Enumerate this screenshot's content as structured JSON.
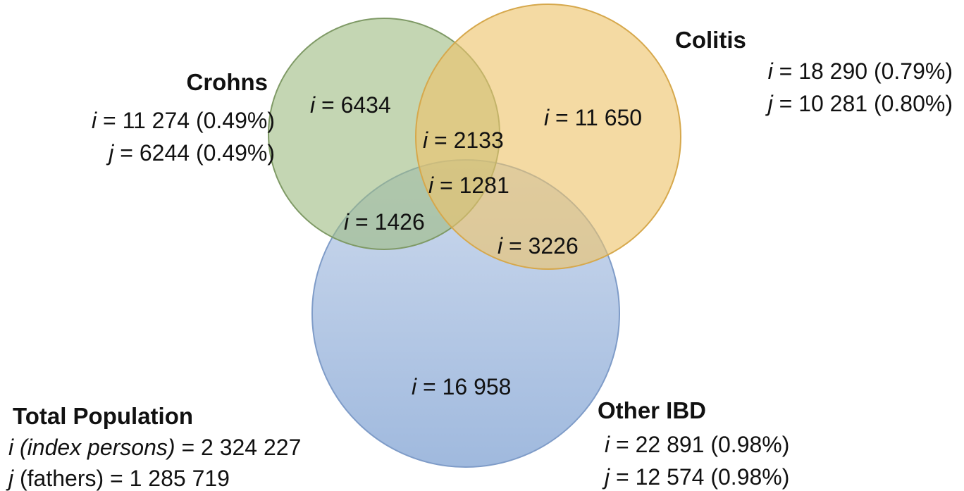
{
  "sets": {
    "crohns": {
      "name": "Crohns",
      "stats": [
        {
          "var": "i",
          "rest": " = 11 274 (0.49%)"
        },
        {
          "var": "j",
          "rest": " = 6244 (0.49%)"
        }
      ]
    },
    "colitis": {
      "name": "Colitis",
      "stats": [
        {
          "var": "i",
          "rest": " = 18 290 (0.79%)"
        },
        {
          "var": "j",
          "rest": " = 10 281 (0.80%)"
        }
      ]
    },
    "other_ibd": {
      "name": "Other IBD",
      "stats": [
        {
          "var": "i",
          "rest": " = 22 891 (0.98%)"
        },
        {
          "var": "j",
          "rest": " = 12 574 (0.98%)"
        }
      ]
    }
  },
  "total_population": {
    "title": "Total Population",
    "lines": [
      {
        "italic": "i (index persons)",
        "rest": " = 2 324 227"
      },
      {
        "italic": "j",
        "rest": " (fathers) = 1 285 719"
      }
    ]
  },
  "regions": {
    "crohns_only": {
      "var": "i",
      "rest": " = 6434"
    },
    "colitis_only": {
      "var": "i",
      "rest": " = 11 650"
    },
    "crohns_colitis": {
      "var": "i",
      "rest": " = 2133"
    },
    "all_three": {
      "var": "i",
      "rest": " = 1281"
    },
    "crohns_other": {
      "var": "i",
      "rest": " = 1426"
    },
    "colitis_other": {
      "var": "i",
      "rest": " = 3226"
    },
    "other_only": {
      "var": "i",
      "rest": " = 16 958"
    }
  }
}
